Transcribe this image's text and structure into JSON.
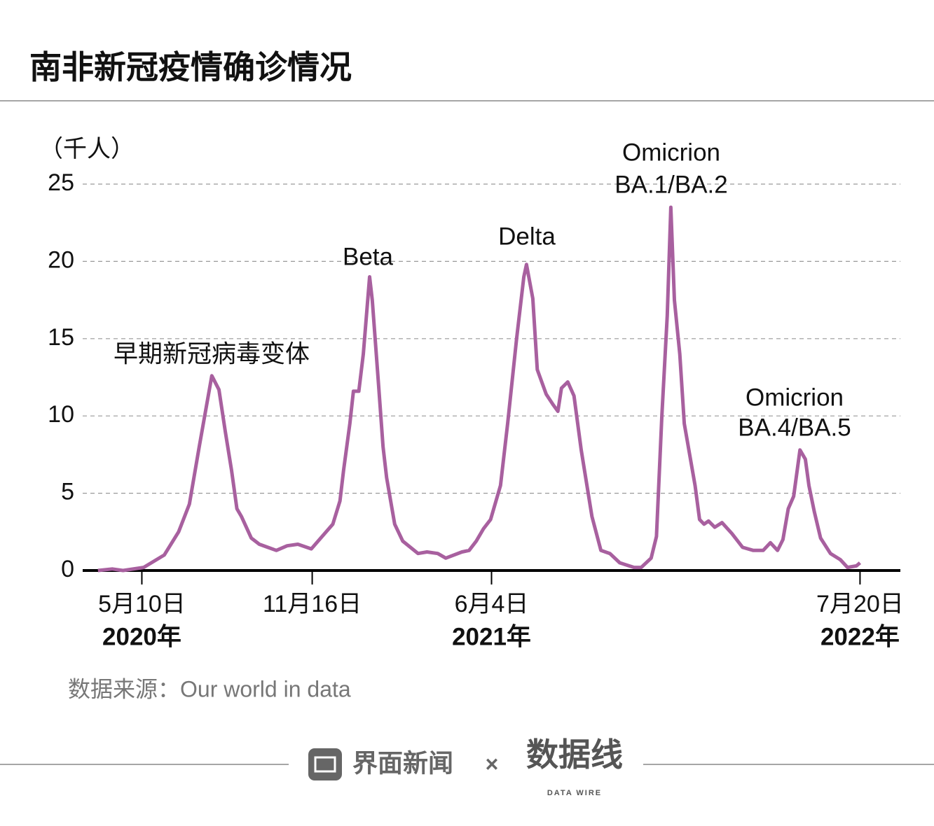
{
  "chart_data": {
    "type": "line",
    "title": "南非新冠疫情确诊情况",
    "y_label": "（千人）",
    "source": "数据来源：Our world in data",
    "footer": {
      "brand": "界面新闻",
      "separator": "×",
      "partner": "数据线",
      "partner_sub": "DATA WIRE"
    },
    "annotations": [
      "早期新冠病毒变体",
      "Beta",
      "Delta",
      "Omicrion",
      "BA.1/BA.2",
      "Omicrion",
      "BA.4/BA.5"
    ],
    "xlim": [
      "2020-03-05",
      "2022-09-03"
    ],
    "xticks": [
      {
        "value": "2020-05-10",
        "label": "5月10日",
        "year": "2020年"
      },
      {
        "value": "2020-11-16",
        "label": "11月16日"
      },
      {
        "value": "2021-06-04",
        "label": "6月4日",
        "year": "2021年"
      },
      {
        "value": "2022-07-20",
        "label": "7月20日",
        "year": "2022年"
      }
    ],
    "ylim": [
      0,
      25
    ],
    "yticks": [
      0,
      5,
      10,
      15,
      20,
      25
    ],
    "grid": true,
    "x": [
      "2020-03-22",
      "2020-04-07",
      "2020-04-19",
      "2020-05-12",
      "2020-06-04",
      "2020-06-20",
      "2020-07-02",
      "2020-07-13",
      "2020-07-27",
      "2020-08-04",
      "2020-08-11",
      "2020-08-18",
      "2020-08-24",
      "2020-08-29",
      "2020-09-09",
      "2020-09-18",
      "2020-10-07",
      "2020-10-19",
      "2020-10-31",
      "2020-11-15",
      "2020-12-09",
      "2020-12-17",
      "2020-12-21",
      "2020-12-28",
      "2021-01-01",
      "2021-01-07",
      "2021-01-12",
      "2021-01-19",
      "2021-01-22",
      "2021-01-29",
      "2021-02-03",
      "2021-02-07",
      "2021-02-16",
      "2021-02-25",
      "2021-03-14",
      "2021-03-24",
      "2021-04-05",
      "2021-04-14",
      "2021-05-02",
      "2021-05-10",
      "2021-05-18",
      "2021-05-26",
      "2021-06-03",
      "2021-06-14",
      "2021-06-22",
      "2021-07-02",
      "2021-07-10",
      "2021-07-13",
      "2021-07-20",
      "2021-07-25",
      "2021-08-04",
      "2021-08-12",
      "2021-08-17",
      "2021-08-21",
      "2021-08-28",
      "2021-09-04",
      "2021-09-12",
      "2021-09-24",
      "2021-10-04",
      "2021-10-14",
      "2021-10-25",
      "2021-11-10",
      "2021-11-18",
      "2021-11-29",
      "2021-12-05",
      "2021-12-11",
      "2021-12-17",
      "2021-12-21",
      "2021-12-25",
      "2021-12-31",
      "2022-01-05",
      "2022-01-11",
      "2022-01-17",
      "2022-01-22",
      "2022-01-27",
      "2022-02-01",
      "2022-02-08",
      "2022-02-16",
      "2022-02-27",
      "2022-03-11",
      "2022-03-23",
      "2022-04-03",
      "2022-04-11",
      "2022-04-19",
      "2022-04-25",
      "2022-05-01",
      "2022-05-07",
      "2022-05-14",
      "2022-05-20",
      "2022-05-24",
      "2022-05-30",
      "2022-06-06",
      "2022-06-17",
      "2022-06-28",
      "2022-07-06",
      "2022-07-16",
      "2022-07-20"
    ],
    "series": [
      {
        "name": "确诊",
        "color": "#a8609f",
        "values": [
          0,
          0.1,
          0,
          0.2,
          1,
          2.5,
          4.3,
          8,
          12.6,
          11.7,
          9,
          6.5,
          4,
          3.5,
          2.1,
          1.7,
          1.3,
          1.6,
          1.7,
          1.4,
          3,
          4.5,
          6.5,
          9.5,
          11.6,
          11.6,
          14,
          19,
          17.5,
          12,
          8,
          6,
          3,
          1.9,
          1.1,
          1.2,
          1.1,
          0.8,
          1.2,
          1.3,
          1.9,
          2.7,
          3.3,
          5.5,
          9.5,
          15,
          19,
          19.8,
          17.6,
          13,
          11.4,
          10.7,
          10.3,
          11.8,
          12.2,
          11.3,
          7.8,
          3.5,
          1.3,
          1.1,
          0.5,
          0.2,
          0.2,
          0.8,
          2.2,
          10,
          16.5,
          23.5,
          17.5,
          14,
          9.5,
          7.5,
          5.5,
          3.3,
          3,
          3.2,
          2.8,
          3.1,
          2.4,
          1.5,
          1.3,
          1.3,
          1.8,
          1.3,
          2,
          4,
          4.8,
          7.8,
          7.2,
          5.5,
          3.8,
          2.1,
          1.1,
          0.7,
          0.2,
          0.3,
          0.5
        ]
      }
    ]
  }
}
